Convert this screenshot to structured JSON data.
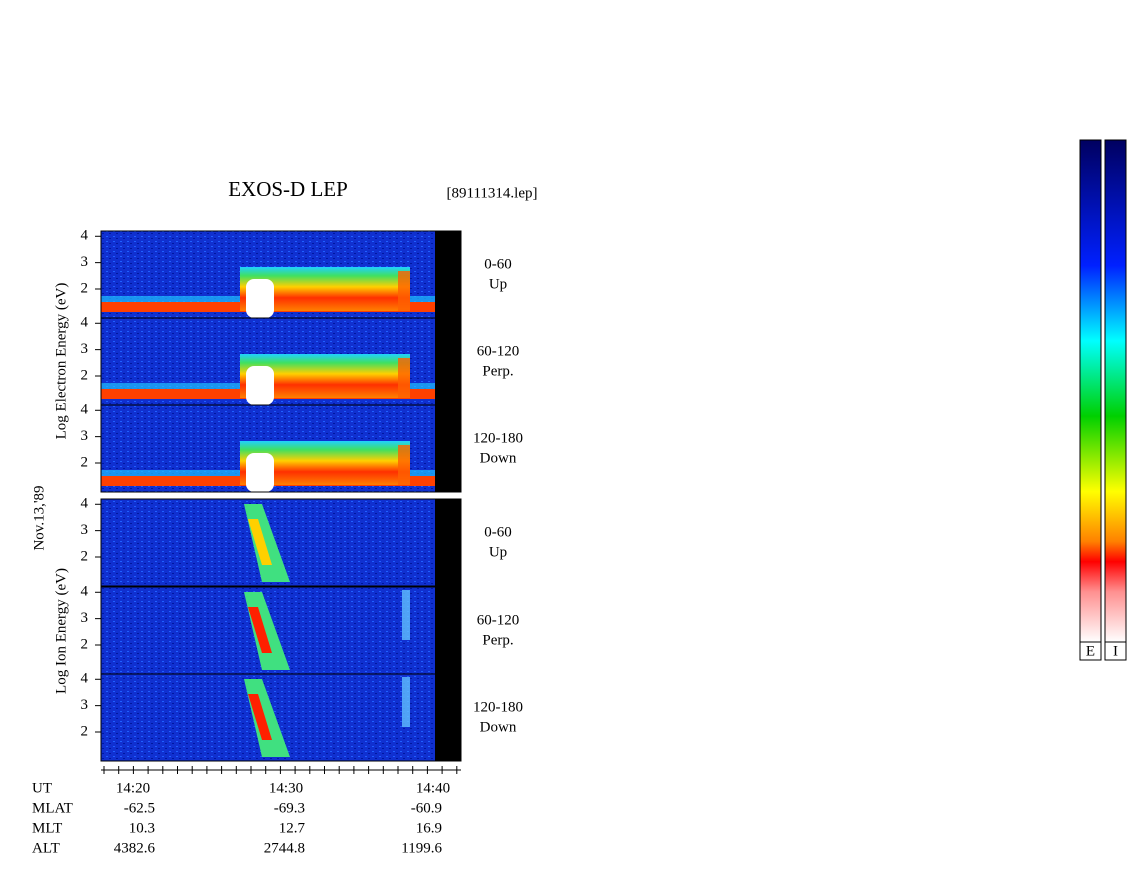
{
  "title": "EXOS-D LEP",
  "file": "[89111314.lep]",
  "date": "Nov.13,'89",
  "electron_label": "Log  Electron  Energy  (eV)",
  "ion_label": "Log  Ion  Energy  (eV)",
  "ylim": [
    0.9,
    4.2
  ],
  "yticks": [
    2,
    3,
    4
  ],
  "panels": [
    {
      "species": "electron",
      "range": "0-60",
      "direction": "Up"
    },
    {
      "species": "electron",
      "range": "60-120",
      "direction": "Perp."
    },
    {
      "species": "electron",
      "range": "120-180",
      "direction": "Down"
    },
    {
      "species": "ion",
      "range": "0-60",
      "direction": "Up"
    },
    {
      "species": "ion",
      "range": "60-120",
      "direction": "Perp."
    },
    {
      "species": "ion",
      "range": "120-180",
      "direction": "Down"
    }
  ],
  "time_axis": {
    "label": "UT",
    "ticks": [
      "14:20",
      "14:30",
      "14:40"
    ]
  },
  "orbit_rows": [
    {
      "label": "MLAT",
      "values": [
        -62.5,
        -69.3,
        -60.9
      ]
    },
    {
      "label": "MLT",
      "values": [
        10.3,
        12.7,
        16.9
      ]
    },
    {
      "label": "ALT",
      "values": [
        4382.6,
        2744.8,
        1199.6
      ]
    }
  ],
  "colorbars": [
    "E",
    "I"
  ]
}
